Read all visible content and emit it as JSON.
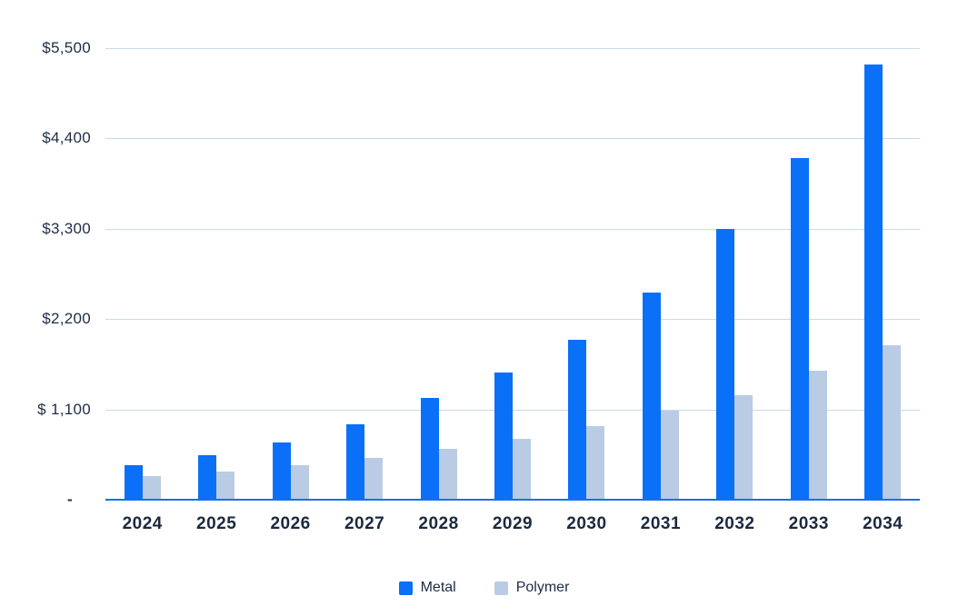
{
  "chart_data": {
    "type": "bar",
    "title": "",
    "xlabel": "",
    "ylabel": "",
    "categories": [
      "2024",
      "2025",
      "2026",
      "2027",
      "2028",
      "2029",
      "2030",
      "2031",
      "2032",
      "2033",
      "2034"
    ],
    "series": [
      {
        "name": "Metal",
        "color": "#0b70f8",
        "values": [
          420,
          540,
          700,
          920,
          1240,
          1550,
          1950,
          2520,
          3300,
          4160,
          5300
        ]
      },
      {
        "name": "Polymer",
        "color": "#b9cce4",
        "values": [
          290,
          340,
          420,
          510,
          620,
          740,
          900,
          1080,
          1270,
          1570,
          1880
        ]
      }
    ],
    "ylim": [
      0,
      5500
    ],
    "y_ticks": [
      {
        "value": 5500,
        "label": "$5,500"
      },
      {
        "value": 4400,
        "label": "$4,400"
      },
      {
        "value": 3300,
        "label": "$3,300"
      },
      {
        "value": 2200,
        "label": "$2,200"
      },
      {
        "value": 1100,
        "label": "$ 1,100"
      },
      {
        "value": 0,
        "label": "-"
      }
    ],
    "grid": true,
    "legend_position": "bottom"
  },
  "legend": {
    "items": [
      {
        "label": "Metal",
        "color": "#0b70f8"
      },
      {
        "label": "Polymer",
        "color": "#b9cce4"
      }
    ]
  },
  "colors": {
    "metal": "#0b70f8",
    "polymer": "#b9cce4",
    "gridline": "#c9daf0",
    "axis_line": "#1b6fe8",
    "label_text": "#1f2d45",
    "background": "#ffffff"
  }
}
